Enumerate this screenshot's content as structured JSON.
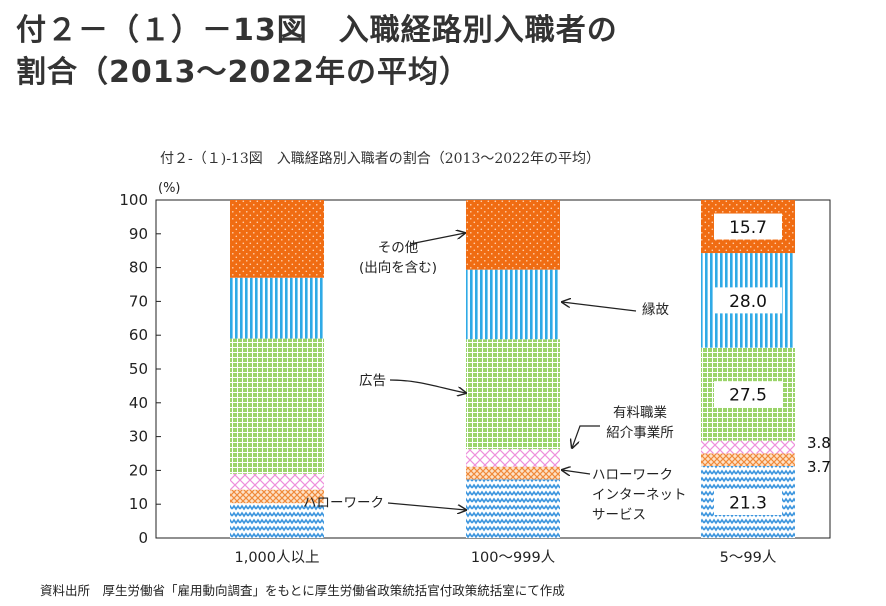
{
  "title": {
    "line1": "付２－（１）－13図　入職経路別入職者の",
    "line2": "割合（2013～2022年の平均）"
  },
  "caption": "付２-（１)-13図　入職経路別入職者の割合（2013～2022年の平均）",
  "source": "資料出所　厚生労働省「雇用動向調査」をもとに厚生労働省政策統括官付政策統括室にて作成",
  "chart_data": {
    "type": "bar",
    "stacked": true,
    "ylabel": "(%)",
    "ylim": [
      0,
      100
    ],
    "yticks": [
      0,
      10,
      20,
      30,
      40,
      50,
      60,
      70,
      80,
      90,
      100
    ],
    "categories": [
      "1,000人以上",
      "100～999人",
      "5～99人"
    ],
    "series": [
      {
        "name": "ハローワーク",
        "color": "#5aa6e0",
        "pattern": "wave",
        "values": [
          10.3,
          17.3,
          21.3
        ]
      },
      {
        "name": "ハローワークインターネットサービス",
        "color": "#f5a66e",
        "pattern": "crosshatch",
        "values": [
          4.0,
          3.8,
          3.7
        ]
      },
      {
        "name": "有料職業紹介事業所",
        "color": "#f3a8e6",
        "pattern": "diamond",
        "values": [
          4.7,
          5.2,
          3.8
        ]
      },
      {
        "name": "広告",
        "color": "#8fcc5a",
        "pattern": "grid",
        "values": [
          40.0,
          32.5,
          27.5
        ]
      },
      {
        "name": "縁故",
        "color": "#35aee8",
        "pattern": "vstripe",
        "values": [
          18.0,
          20.6,
          28.0
        ]
      },
      {
        "name": "その他（出向を含む）",
        "color": "#f07018",
        "pattern": "dots",
        "values": [
          23.0,
          20.6,
          15.7
        ]
      }
    ],
    "data_labels": [
      {
        "category": "5～99人",
        "series": "ハローワーク",
        "text": "21.3"
      },
      {
        "category": "5～99人",
        "series": "ハローワークインターネットサービス",
        "text": "3.7"
      },
      {
        "category": "5～99人",
        "series": "有料職業紹介事業所",
        "text": "3.8"
      },
      {
        "category": "5～99人",
        "series": "広告",
        "text": "27.5"
      },
      {
        "category": "5～99人",
        "series": "縁故",
        "text": "28.0"
      },
      {
        "category": "5～99人",
        "series": "その他（出向を含む）",
        "text": "15.7"
      }
    ],
    "annotations": {
      "sonota": [
        "その他",
        "(出向を含む)"
      ],
      "enko": "縁故",
      "koukoku": "広告",
      "yuryo": [
        "有料職業",
        "紹介事業所"
      ],
      "hw": "ハローワーク",
      "hwis": [
        "ハローワーク",
        "インターネット",
        "サービス"
      ]
    }
  }
}
